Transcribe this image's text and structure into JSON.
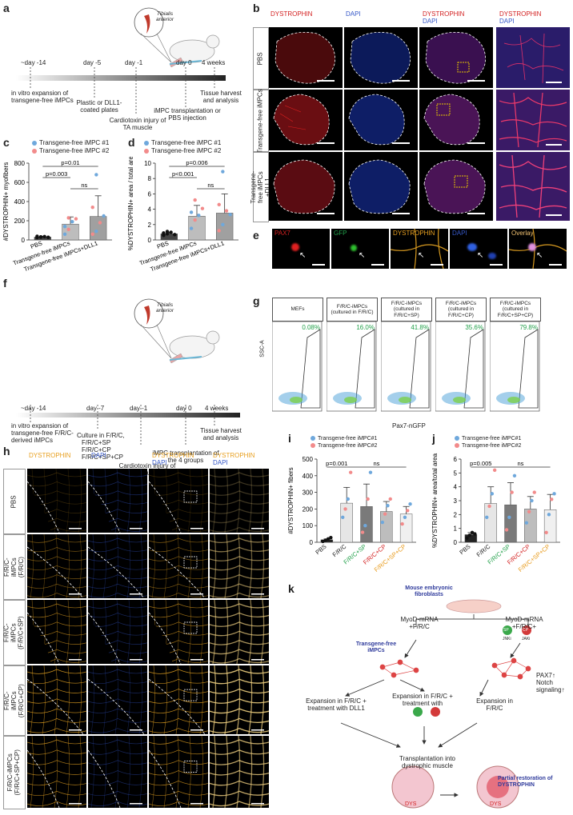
{
  "figure": {
    "panel_labels": [
      "a",
      "b",
      "c",
      "d",
      "e",
      "f",
      "g",
      "h",
      "i",
      "j",
      "k"
    ]
  },
  "panel_a": {
    "muscle": "Tibialis anterior",
    "timepoints": [
      "~day -14",
      "day -5",
      "day -1",
      "day 0",
      "4 weeks"
    ],
    "steps": [
      "in vitro expansion of transgene-free iMPCs",
      "Plastic or DLL1-coated plates",
      "Cardiotoxin injury of TA muscle",
      "iMPC transplantation or PBS injection",
      "Tissue harvest and analysis"
    ]
  },
  "panel_b": {
    "headers": [
      "DYSTROPHIN",
      "DAPI",
      "DYSTROPHIN",
      "DAPI",
      "DYSTROPHIN",
      "DAPI"
    ],
    "rows": [
      "PBS",
      "Transgene-free iMPCs",
      "Transgene-free iMPCs +DLL1"
    ]
  },
  "panel_c": {
    "legend": [
      "Transgene-free iMPC #1",
      "Transgene-free iMPC #2"
    ],
    "pvalues": [
      "p=0.01",
      "p=0.003",
      "ns"
    ],
    "chart_data": {
      "type": "bar",
      "ylabel": "#DYSTROPHIN+ myofibers",
      "categories": [
        "PBS",
        "Transgene-free iMPCs",
        "Transgene-free iMPCs+DLL1"
      ],
      "values": [
        30,
        165,
        245
      ],
      "errors": [
        8,
        75,
        215
      ],
      "ylim": [
        0,
        800
      ],
      "yticks": [
        0,
        200,
        400,
        600,
        800
      ]
    }
  },
  "panel_d": {
    "legend": [
      "Transgene-free iMPC #1",
      "Transgene-free iMPC #2"
    ],
    "pvalues": [
      "p=0.006",
      "p<0.001",
      "ns"
    ],
    "chart_data": {
      "type": "bar",
      "ylabel": "%DYSTROPHIN+ area / total area",
      "categories": [
        "PBS",
        "Transgene-free iMPCs",
        "Transgene-free iMPCs+DLL1"
      ],
      "values": [
        0.8,
        3.1,
        3.5
      ],
      "errors": [
        0.2,
        1.4,
        2.5
      ],
      "ylim": [
        0,
        10
      ],
      "yticks": [
        0,
        2,
        4,
        6,
        8,
        10
      ]
    }
  },
  "panel_e": {
    "channels": [
      "PAX7",
      "GFP",
      "DYSTROPHIN",
      "DAPI",
      "Overlay"
    ]
  },
  "panel_f": {
    "muscle": "Tibialis anterior",
    "timepoints": [
      "~day -14",
      "day -7",
      "day -1",
      "day 0",
      "4 weeks"
    ],
    "steps": [
      "in vitro expansion of transgene-free F/R/C-derived iMPCs",
      "Culture in F/R/C,",
      "F/R/C+SP",
      "F/R/C+CP",
      "F/R/C+SP+CP",
      "Cardiotoxin injury of TA muscle",
      "iMPC transplantation of the 4 groups",
      "Tissue harvest and analysis"
    ]
  },
  "panel_g": {
    "boxes": [
      "MEFs",
      "F/R/C-iMPCs (cultured in F/R/C)",
      "F/R/C-iMPCs (cultured in F/R/C+SP)",
      "F/R/C-iMPCs (cultured in F/R/C+CP)",
      "F/R/C-iMPCs (cultured in F/R/C+SP+CP)"
    ],
    "percents": [
      "0.08%",
      "16.0%",
      "41.8%",
      "35.6%",
      "79.8%"
    ],
    "ylabel": "SSC-A",
    "xlabel": "Pax7-nGFP"
  },
  "panel_h": {
    "headers": [
      "DYSTROPHIN",
      "DAPI",
      "DYSTROPHIN",
      "DAPI",
      "DYSTROPHIN",
      "DAPI"
    ],
    "rows": [
      "PBS",
      "F/R/C-iMPCs (F/R/C)",
      "F/R/C-iMPCs (F/R/C+SP)",
      "F/R/C-iMPCs (F/R/C+CP)",
      "F/R/C-iMPCs (F/R/C+SP+CP)"
    ]
  },
  "panel_i": {
    "legend": [
      "Transgene-free iMPC#1",
      "Transgene-free iMPC#2"
    ],
    "pvalues": [
      "p=0.001",
      "ns"
    ],
    "chart_data": {
      "type": "bar",
      "ylabel": "#DYSTROPHIN+ fibers",
      "categories": [
        "PBS",
        "F/R/C",
        "F/R/C+SP",
        "F/R/C+CP",
        "F/R/C+SP+CP"
      ],
      "values": [
        15,
        235,
        215,
        185,
        170
      ],
      "errors": [
        5,
        95,
        135,
        60,
        45
      ],
      "ylim": [
        0,
        500
      ],
      "yticks": [
        0,
        100,
        200,
        300,
        400,
        500
      ]
    }
  },
  "panel_j": {
    "legend": [
      "Transgene-free iMPC#1",
      "Transgene-free iMPC#2"
    ],
    "pvalues": [
      "p=0.005",
      "ns"
    ],
    "chart_data": {
      "type": "bar",
      "ylabel": "%DYSTROPHIN+ area/total area",
      "categories": [
        "PBS",
        "F/R/C",
        "F/R/C+SP",
        "F/R/C+CP",
        "F/R/C+SP+CP"
      ],
      "values": [
        0.55,
        2.8,
        2.7,
        2.4,
        2.35
      ],
      "errors": [
        0.15,
        1.2,
        1.6,
        0.9,
        1.1
      ],
      "ylim": [
        0,
        6
      ],
      "yticks": [
        0,
        1,
        2,
        3,
        4,
        5,
        6
      ]
    }
  },
  "panel_k": {
    "labels": [
      "Mouse embryonic fibroblasts",
      "MyoD-mRNA +F/R/C",
      "MyoD-mRNA +F/R/C+",
      "Transgene-free iMPCs",
      "PAX7↑ Notch signaling↑",
      "Expansion in F/R/C + treatment with DLL1",
      "Expansion in F/R/C + treatment with",
      "Expansion in F/R/C",
      "Transplantation into dystrophic muscle",
      "Partial restoration of DYSTROPHIN",
      "DYS",
      "DYS",
      "SP",
      "CP",
      "JNKi",
      "JAKi"
    ]
  },
  "colors": {
    "rep1": "#6fa8dc",
    "rep2": "#f28b8b",
    "dystrophin_red": "#d32020",
    "dystrophin_orange": "#e8a020",
    "dapi_blue": "#3658c8",
    "green": "#22a04a",
    "kpanel_title": "#2f3b9c"
  }
}
